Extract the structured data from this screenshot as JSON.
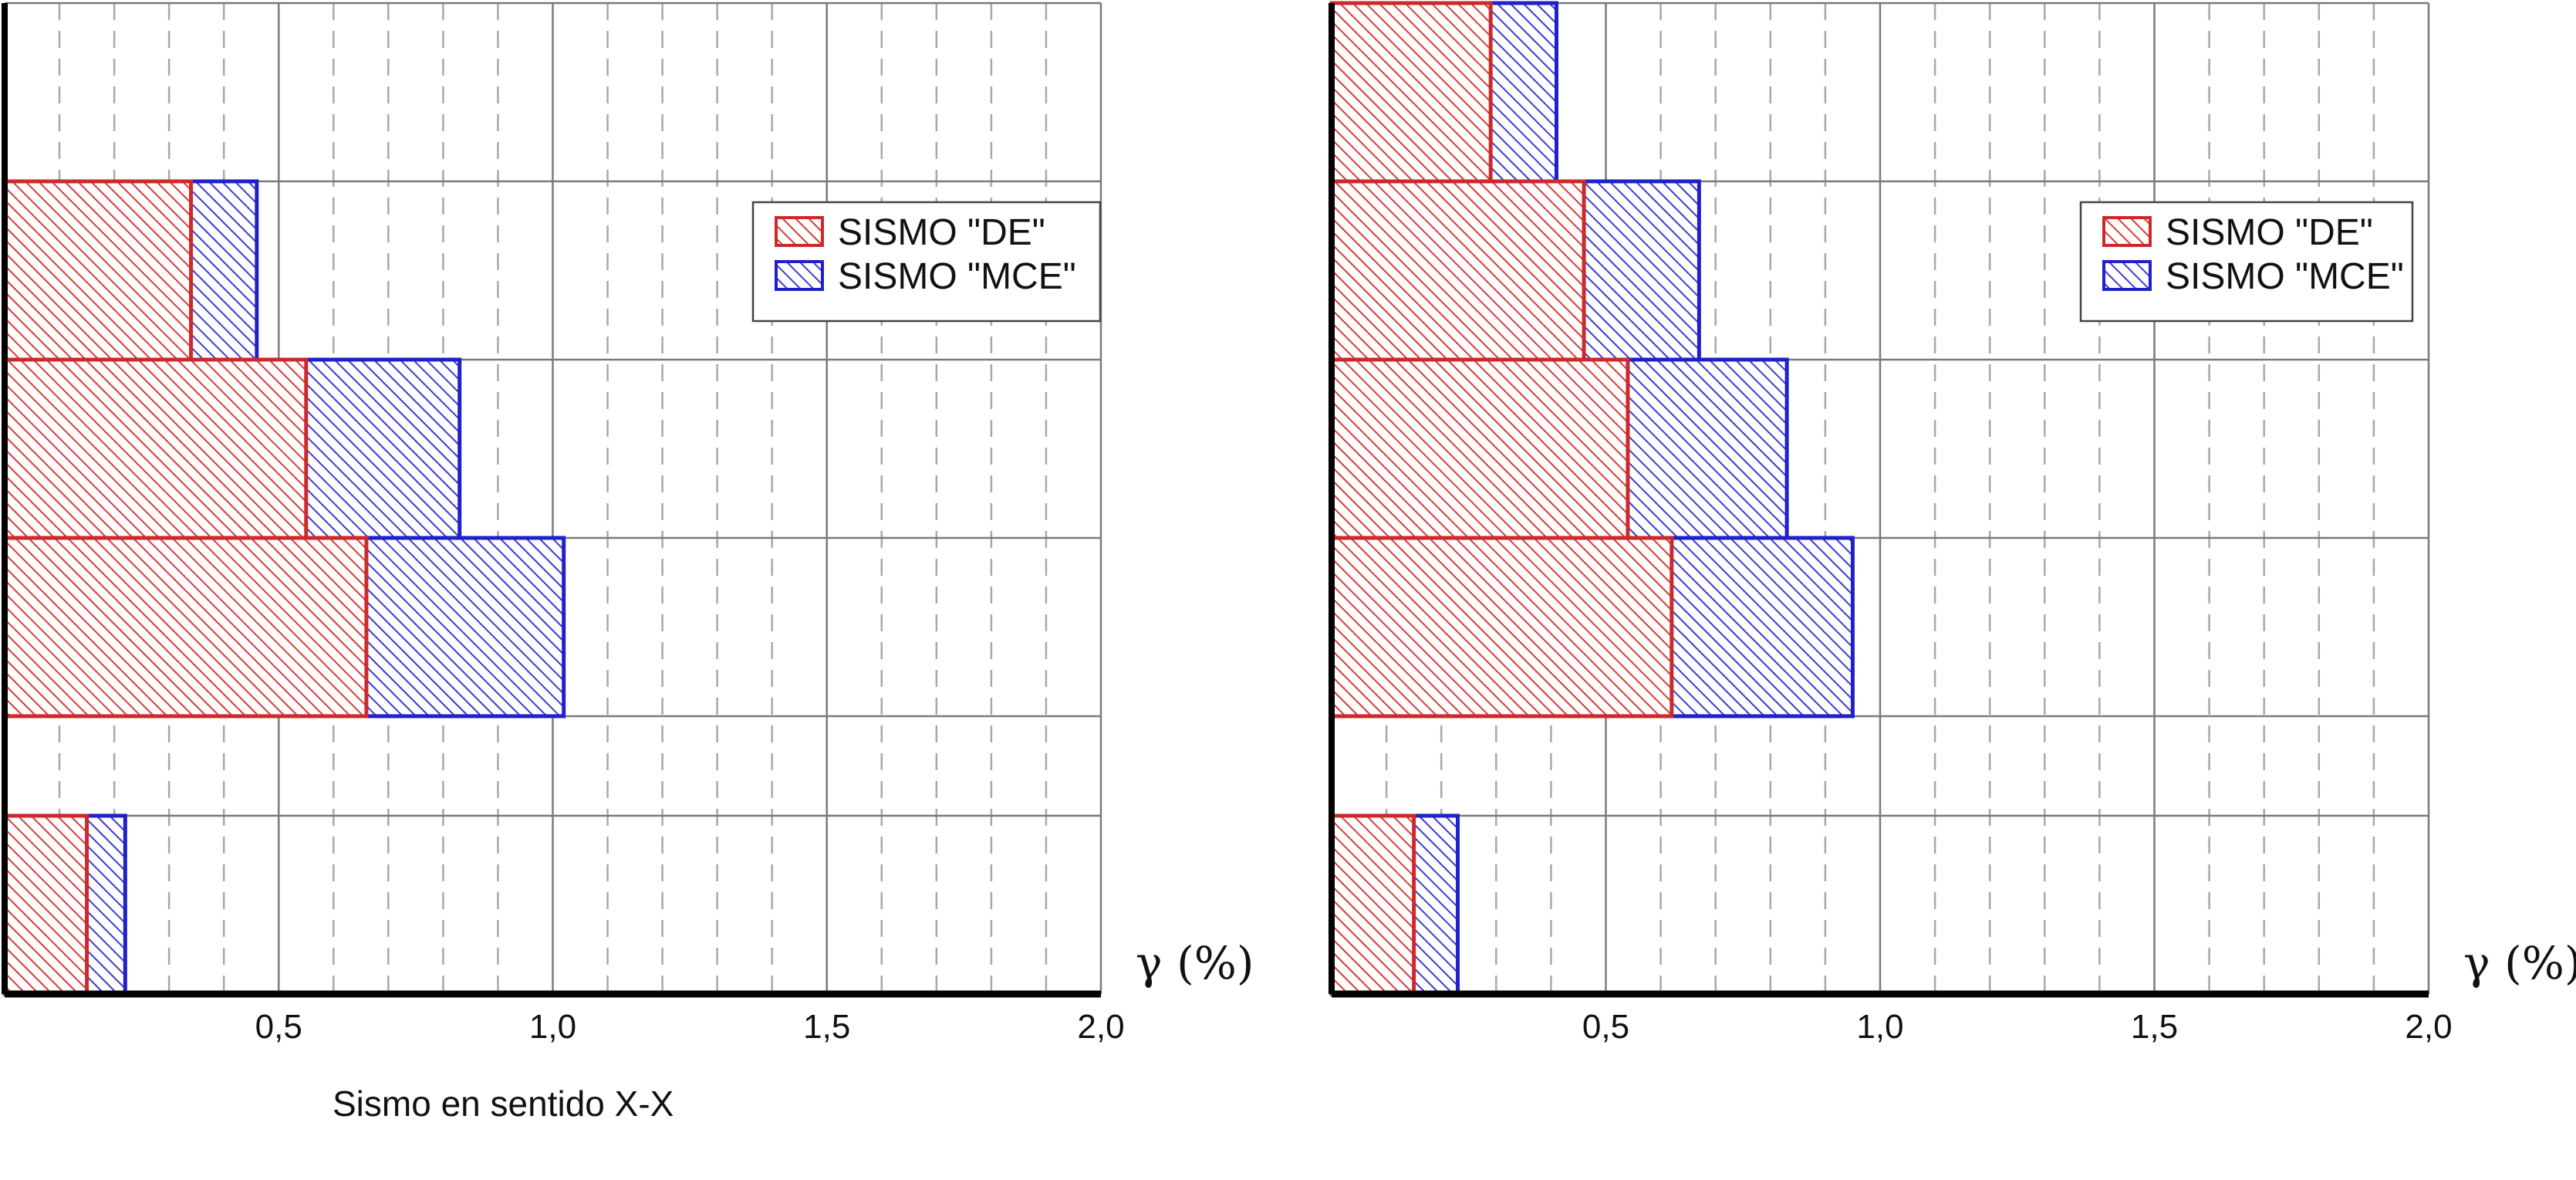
{
  "chart_data": [
    {
      "type": "bar",
      "orientation": "horizontal",
      "layout": "overlapping",
      "xlim": [
        0,
        2.0
      ],
      "xticks": [
        "0,5",
        "1,0",
        "1,5",
        "2,0"
      ],
      "xlabel": "γ (%)",
      "caption": "Sismo en sentido X-X",
      "legend_position": "upper-right",
      "grid": true,
      "series": [
        {
          "name": "SISMO \"DE\"",
          "color": "#d42a2a",
          "values": [
            0.15,
            0.66,
            0.55,
            0.34,
            0.0
          ]
        },
        {
          "name": "SISMO \"MCE\"",
          "color": "#2a2ad4",
          "values": [
            0.22,
            1.02,
            0.83,
            0.46,
            0.0
          ]
        }
      ]
    },
    {
      "type": "bar",
      "orientation": "horizontal",
      "layout": "overlapping",
      "xlim": [
        0,
        2.0
      ],
      "xticks": [
        "0,5",
        "1,0",
        "1,5",
        "2,0"
      ],
      "xlabel": "γ (%)",
      "caption": "",
      "legend_position": "upper-right",
      "grid": true,
      "series": [
        {
          "name": "SISMO \"DE\"",
          "color": "#d42a2a",
          "values": [
            0.15,
            0.62,
            0.54,
            0.46,
            0.29
          ]
        },
        {
          "name": "SISMO \"MCE\"",
          "color": "#2a2ad4",
          "values": [
            0.23,
            0.95,
            0.83,
            0.67,
            0.41
          ]
        }
      ]
    }
  ]
}
